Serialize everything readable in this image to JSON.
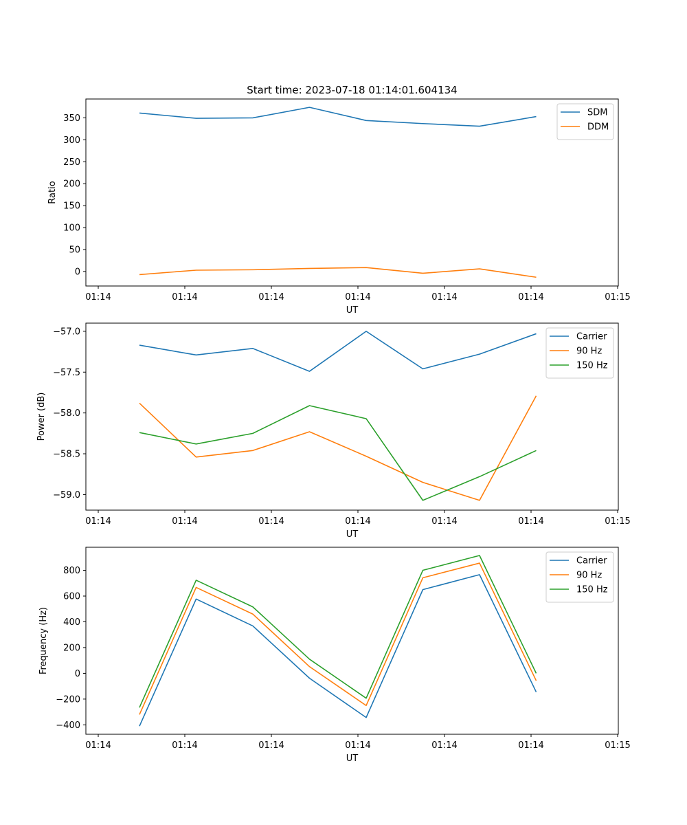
{
  "figure": {
    "title": "Start time: 2023-07-18 01:14:01.604134"
  },
  "colors": {
    "blue": "#1f77b4",
    "orange": "#ff7f0e",
    "green": "#2ca02c"
  },
  "chart_data": [
    {
      "type": "line",
      "title": "Start time: 2023-07-18 01:14:01.604134",
      "xlabel": "UT",
      "ylabel": "Ratio",
      "xtick_labels": [
        "01:14",
        "01:14",
        "01:14",
        "01:14",
        "01:14",
        "01:14",
        "01:14",
        "01:15"
      ],
      "yticks": [
        0,
        50,
        100,
        150,
        200,
        250,
        300,
        350
      ],
      "ytick_labels": [
        "0",
        "50",
        "100",
        "150",
        "200",
        "250",
        "300",
        "350"
      ],
      "ylim": [
        -33,
        393
      ],
      "legend": "top-right",
      "series": [
        {
          "name": "SDM",
          "color": "#1f77b4",
          "values": [
            361,
            349,
            350,
            374,
            344,
            337,
            331,
            353
          ]
        },
        {
          "name": "DDM",
          "color": "#ff7f0e",
          "values": [
            -7,
            3,
            4,
            7,
            9,
            -4,
            6,
            -13
          ]
        }
      ]
    },
    {
      "type": "line",
      "title": "",
      "xlabel": "UT",
      "ylabel": "Power (dB)",
      "xtick_labels": [
        "01:14",
        "01:14",
        "01:14",
        "01:14",
        "01:14",
        "01:14",
        "01:14",
        "01:15"
      ],
      "yticks": [
        -57.0,
        -57.5,
        -58.0,
        -58.5,
        -59.0
      ],
      "ytick_labels": [
        "−57.0",
        "−57.5",
        "−58.0",
        "−58.5",
        "−59.0"
      ],
      "ylim": [
        -59.19,
        -56.9
      ],
      "legend": "top-right",
      "series": [
        {
          "name": "Carrier",
          "color": "#1f77b4",
          "values": [
            -57.17,
            -57.29,
            -57.21,
            -57.49,
            -57.0,
            -57.46,
            -57.28,
            -57.03
          ]
        },
        {
          "name": "90 Hz",
          "color": "#ff7f0e",
          "values": [
            -57.88,
            -58.54,
            -58.46,
            -58.23,
            -58.53,
            -58.85,
            -59.07,
            -57.79
          ]
        },
        {
          "name": "150 Hz",
          "color": "#2ca02c",
          "values": [
            -58.24,
            -58.38,
            -58.25,
            -57.91,
            -58.07,
            -59.07,
            -58.78,
            -58.46
          ]
        }
      ]
    },
    {
      "type": "line",
      "title": "",
      "xlabel": "UT",
      "ylabel": "Frequency (Hz)",
      "xtick_labels": [
        "01:14",
        "01:14",
        "01:14",
        "01:14",
        "01:14",
        "01:14",
        "01:14",
        "01:15"
      ],
      "yticks": [
        -400,
        -200,
        0,
        200,
        400,
        600,
        800
      ],
      "ytick_labels": [
        "−400",
        "−200",
        "0",
        "200",
        "400",
        "600",
        "800"
      ],
      "ylim": [
        -473,
        979
      ],
      "legend": "top-right",
      "series": [
        {
          "name": "Carrier",
          "color": "#1f77b4",
          "values": [
            -410,
            577,
            368,
            -38,
            -343,
            650,
            766,
            -145
          ]
        },
        {
          "name": "90 Hz",
          "color": "#ff7f0e",
          "values": [
            -320,
            667,
            460,
            52,
            -250,
            742,
            856,
            -57
          ]
        },
        {
          "name": "150 Hz",
          "color": "#2ca02c",
          "values": [
            -265,
            723,
            516,
            110,
            -193,
            800,
            915,
            0
          ]
        }
      ]
    }
  ]
}
